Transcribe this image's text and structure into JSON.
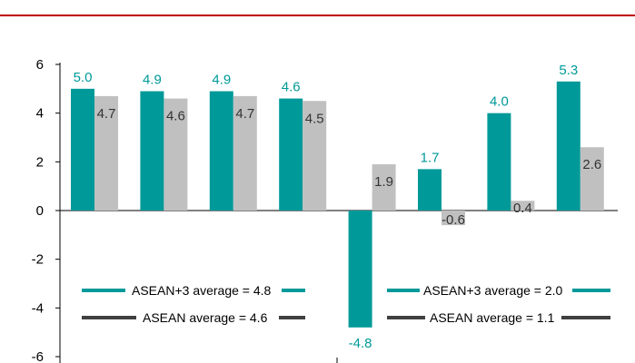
{
  "chart_data": {
    "type": "bar",
    "title": "",
    "xlabel": "",
    "ylabel": "",
    "ylim": [
      -6,
      6
    ],
    "y_ticks": [
      "6",
      "4",
      "2",
      "0",
      "-2",
      "-4",
      "-6"
    ],
    "grid": false,
    "categories": [
      "",
      "",
      "",
      "",
      "",
      "",
      "",
      ""
    ],
    "series": [
      {
        "color": "#009999",
        "label_color": "#009999",
        "values": [
          5.0,
          4.9,
          4.9,
          4.6,
          -4.8,
          1.7,
          4.0,
          5.3
        ],
        "labels": [
          "5.0",
          "4.9",
          "4.9",
          "4.6",
          "-4.8",
          "1.7",
          "4.0",
          "5.3"
        ]
      },
      {
        "color": "#c0c0c0",
        "label_color": "#333333",
        "values": [
          4.7,
          4.6,
          4.7,
          4.5,
          1.9,
          -0.6,
          0.4,
          2.6
        ],
        "labels": [
          "4.7",
          "4.6",
          "4.7",
          "4.5",
          "1.9",
          "-0.6",
          "0.4",
          "2.6"
        ]
      }
    ],
    "annotations": [
      {
        "text": "ASEAN+3 average = 4.8",
        "color": "#009999"
      },
      {
        "text": "ASEAN average = 4.6",
        "color": "#404040"
      },
      {
        "text": "ASEAN+3 average = 2.0",
        "color": "#009999"
      },
      {
        "text": "ASEAN average = 1.1",
        "color": "#404040"
      }
    ]
  },
  "header_rule_color": "#c00000"
}
